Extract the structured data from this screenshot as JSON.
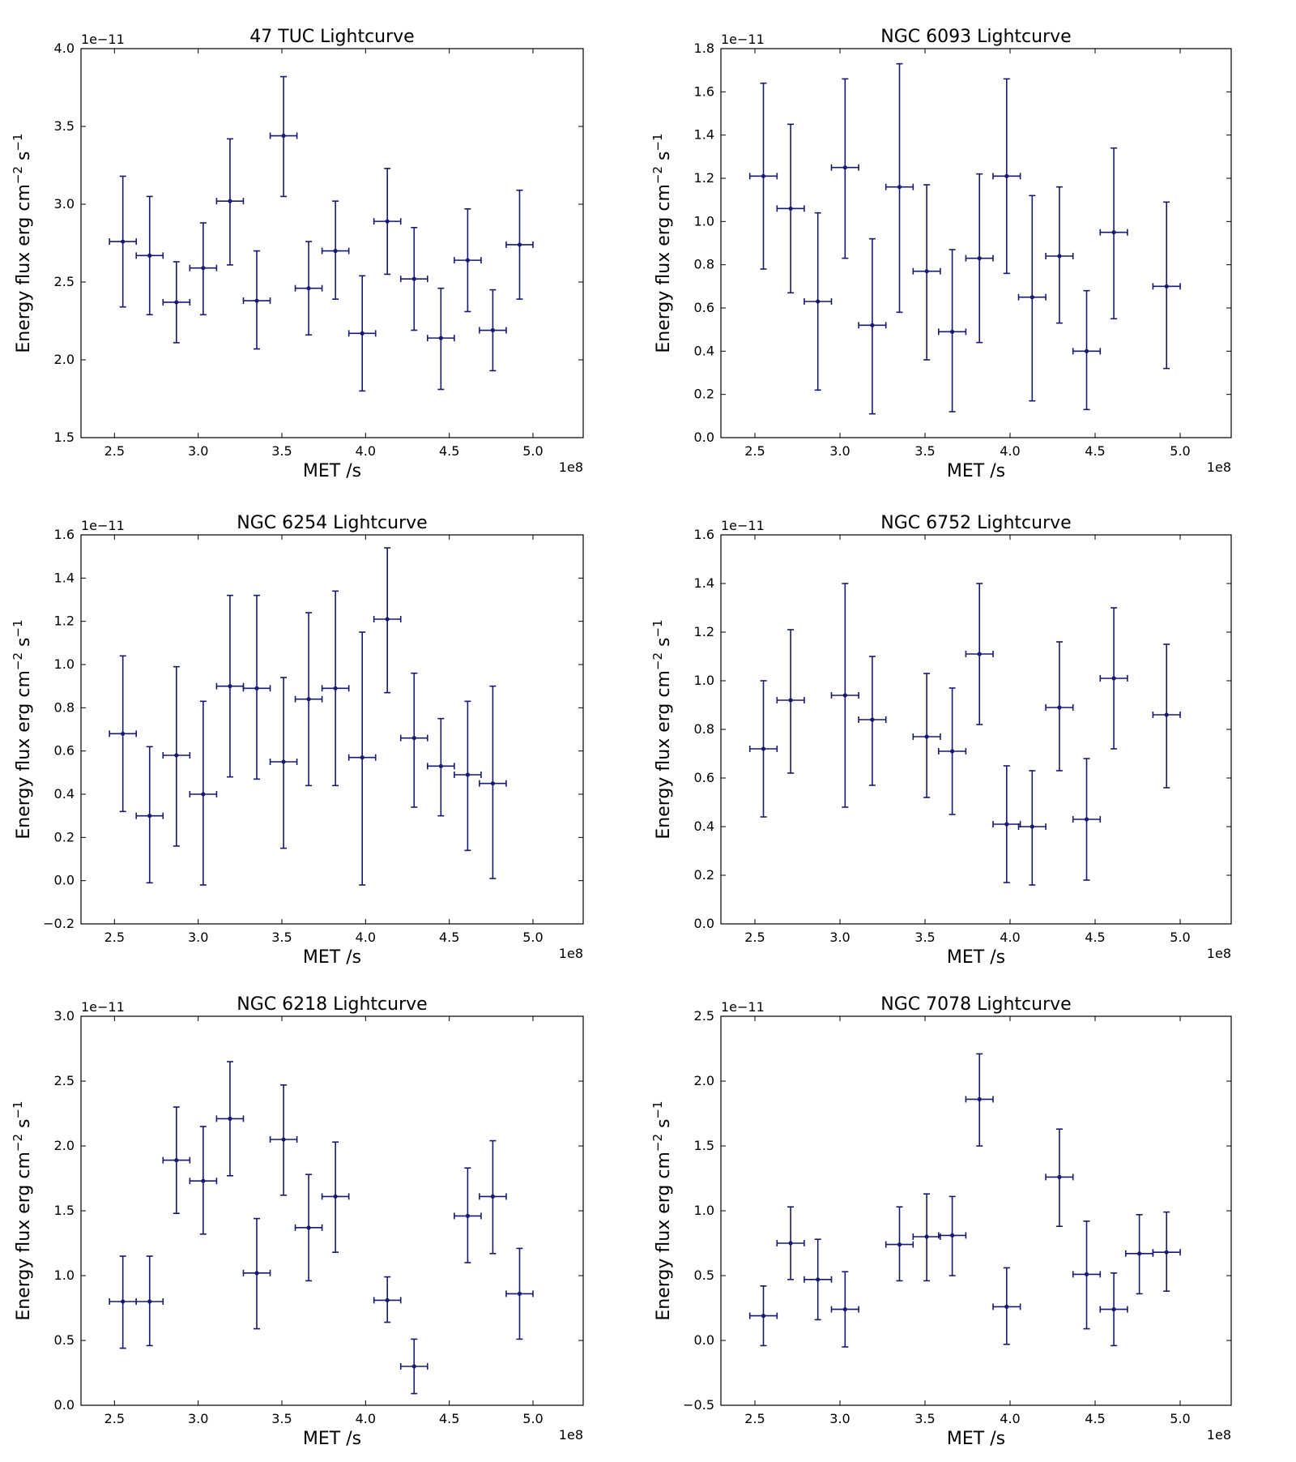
{
  "figure": {
    "xlabel": "MET /s",
    "ylabel_main": "Energy flux erg cm",
    "ylabel_sup1": "−2",
    "ylabel_mid": " s",
    "ylabel_sup2": "−1",
    "x_offset_text": "1e8",
    "y_offset_text": "1e−11"
  },
  "chart_data": [
    {
      "type": "scatter",
      "title": "47 TUC Lightcurve",
      "xlim": [
        2.3,
        5.3
      ],
      "ylim": [
        1.5,
        4.0
      ],
      "x_ticks": [
        2.5,
        3.0,
        3.5,
        4.0,
        4.5,
        5.0
      ],
      "y_ticks": [
        1.5,
        2.0,
        2.5,
        3.0,
        3.5,
        4.0
      ],
      "x_tick_labels": [
        "2.5",
        "3.0",
        "3.5",
        "4.0",
        "4.5",
        "5.0"
      ],
      "y_tick_labels": [
        "1.5",
        "2.0",
        "2.5",
        "3.0",
        "3.5",
        "4.0"
      ],
      "x_halfwidth": 0.08,
      "points": [
        {
          "x": 2.55,
          "y": 2.76,
          "lo": 2.34,
          "hi": 3.18
        },
        {
          "x": 2.71,
          "y": 2.67,
          "lo": 2.29,
          "hi": 3.05
        },
        {
          "x": 2.87,
          "y": 2.37,
          "lo": 2.11,
          "hi": 2.63
        },
        {
          "x": 3.03,
          "y": 2.59,
          "lo": 2.29,
          "hi": 2.88
        },
        {
          "x": 3.19,
          "y": 3.02,
          "lo": 2.61,
          "hi": 3.42
        },
        {
          "x": 3.35,
          "y": 2.38,
          "lo": 2.07,
          "hi": 2.7
        },
        {
          "x": 3.51,
          "y": 3.44,
          "lo": 3.05,
          "hi": 3.82
        },
        {
          "x": 3.66,
          "y": 2.46,
          "lo": 2.16,
          "hi": 2.76
        },
        {
          "x": 3.82,
          "y": 2.7,
          "lo": 2.39,
          "hi": 3.02
        },
        {
          "x": 3.98,
          "y": 2.17,
          "lo": 1.8,
          "hi": 2.54
        },
        {
          "x": 4.13,
          "y": 2.89,
          "lo": 2.55,
          "hi": 3.23
        },
        {
          "x": 4.29,
          "y": 2.52,
          "lo": 2.19,
          "hi": 2.85
        },
        {
          "x": 4.45,
          "y": 2.14,
          "lo": 1.81,
          "hi": 2.46
        },
        {
          "x": 4.61,
          "y": 2.64,
          "lo": 2.31,
          "hi": 2.97
        },
        {
          "x": 4.76,
          "y": 2.19,
          "lo": 1.93,
          "hi": 2.45
        },
        {
          "x": 4.92,
          "y": 2.74,
          "lo": 2.39,
          "hi": 3.09
        }
      ]
    },
    {
      "type": "scatter",
      "title": "NGC 6093 Lightcurve",
      "xlim": [
        2.3,
        5.3
      ],
      "ylim": [
        0.0,
        1.8
      ],
      "x_ticks": [
        2.5,
        3.0,
        3.5,
        4.0,
        4.5,
        5.0
      ],
      "y_ticks": [
        0.0,
        0.2,
        0.4,
        0.6,
        0.8,
        1.0,
        1.2,
        1.4,
        1.6,
        1.8
      ],
      "x_tick_labels": [
        "2.5",
        "3.0",
        "3.5",
        "4.0",
        "4.5",
        "5.0"
      ],
      "y_tick_labels": [
        "0.0",
        "0.2",
        "0.4",
        "0.6",
        "0.8",
        "1.0",
        "1.2",
        "1.4",
        "1.6",
        "1.8"
      ],
      "x_halfwidth": 0.08,
      "points": [
        {
          "x": 2.55,
          "y": 1.21,
          "lo": 0.78,
          "hi": 1.64
        },
        {
          "x": 2.71,
          "y": 1.06,
          "lo": 0.67,
          "hi": 1.45
        },
        {
          "x": 2.87,
          "y": 0.63,
          "lo": 0.22,
          "hi": 1.04
        },
        {
          "x": 3.03,
          "y": 1.25,
          "lo": 0.83,
          "hi": 1.66
        },
        {
          "x": 3.19,
          "y": 0.52,
          "lo": 0.11,
          "hi": 0.92
        },
        {
          "x": 3.35,
          "y": 1.16,
          "lo": 0.58,
          "hi": 1.73
        },
        {
          "x": 3.51,
          "y": 0.77,
          "lo": 0.36,
          "hi": 1.17
        },
        {
          "x": 3.66,
          "y": 0.49,
          "lo": 0.12,
          "hi": 0.87
        },
        {
          "x": 3.82,
          "y": 0.83,
          "lo": 0.44,
          "hi": 1.22
        },
        {
          "x": 3.98,
          "y": 1.21,
          "lo": 0.76,
          "hi": 1.66
        },
        {
          "x": 4.13,
          "y": 0.65,
          "lo": 0.17,
          "hi": 1.12
        },
        {
          "x": 4.29,
          "y": 0.84,
          "lo": 0.53,
          "hi": 1.16
        },
        {
          "x": 4.45,
          "y": 0.4,
          "lo": 0.13,
          "hi": 0.68
        },
        {
          "x": 4.61,
          "y": 0.95,
          "lo": 0.55,
          "hi": 1.34
        },
        {
          "x": 4.92,
          "y": 0.7,
          "lo": 0.32,
          "hi": 1.09
        }
      ]
    },
    {
      "type": "scatter",
      "title": "NGC 6254 Lightcurve",
      "xlim": [
        2.3,
        5.3
      ],
      "ylim": [
        -0.2,
        1.6
      ],
      "x_ticks": [
        2.5,
        3.0,
        3.5,
        4.0,
        4.5,
        5.0
      ],
      "y_ticks": [
        -0.2,
        0.0,
        0.2,
        0.4,
        0.6,
        0.8,
        1.0,
        1.2,
        1.4,
        1.6
      ],
      "x_tick_labels": [
        "2.5",
        "3.0",
        "3.5",
        "4.0",
        "4.5",
        "5.0"
      ],
      "y_tick_labels": [
        "−0.2",
        "0.0",
        "0.2",
        "0.4",
        "0.6",
        "0.8",
        "1.0",
        "1.2",
        "1.4",
        "1.6"
      ],
      "x_halfwidth": 0.08,
      "points": [
        {
          "x": 2.55,
          "y": 0.68,
          "lo": 0.32,
          "hi": 1.04
        },
        {
          "x": 2.71,
          "y": 0.3,
          "lo": -0.01,
          "hi": 0.62
        },
        {
          "x": 2.87,
          "y": 0.58,
          "lo": 0.16,
          "hi": 0.99
        },
        {
          "x": 3.03,
          "y": 0.4,
          "lo": -0.02,
          "hi": 0.83
        },
        {
          "x": 3.19,
          "y": 0.9,
          "lo": 0.48,
          "hi": 1.32
        },
        {
          "x": 3.35,
          "y": 0.89,
          "lo": 0.47,
          "hi": 1.32
        },
        {
          "x": 3.51,
          "y": 0.55,
          "lo": 0.15,
          "hi": 0.94
        },
        {
          "x": 3.66,
          "y": 0.84,
          "lo": 0.44,
          "hi": 1.24
        },
        {
          "x": 3.82,
          "y": 0.89,
          "lo": 0.44,
          "hi": 1.34
        },
        {
          "x": 3.98,
          "y": 0.57,
          "lo": -0.02,
          "hi": 1.15
        },
        {
          "x": 4.13,
          "y": 1.21,
          "lo": 0.87,
          "hi": 1.54
        },
        {
          "x": 4.29,
          "y": 0.66,
          "lo": 0.34,
          "hi": 0.96
        },
        {
          "x": 4.45,
          "y": 0.53,
          "lo": 0.3,
          "hi": 0.75
        },
        {
          "x": 4.61,
          "y": 0.49,
          "lo": 0.14,
          "hi": 0.83
        },
        {
          "x": 4.76,
          "y": 0.45,
          "lo": 0.01,
          "hi": 0.9
        }
      ]
    },
    {
      "type": "scatter",
      "title": "NGC 6752 Lightcurve",
      "xlim": [
        2.3,
        5.3
      ],
      "ylim": [
        0.0,
        1.6
      ],
      "x_ticks": [
        2.5,
        3.0,
        3.5,
        4.0,
        4.5,
        5.0
      ],
      "y_ticks": [
        0.0,
        0.2,
        0.4,
        0.6,
        0.8,
        1.0,
        1.2,
        1.4,
        1.6
      ],
      "x_tick_labels": [
        "2.5",
        "3.0",
        "3.5",
        "4.0",
        "4.5",
        "5.0"
      ],
      "y_tick_labels": [
        "0.0",
        "0.2",
        "0.4",
        "0.6",
        "0.8",
        "1.0",
        "1.2",
        "1.4",
        "1.6"
      ],
      "x_halfwidth": 0.08,
      "points": [
        {
          "x": 2.55,
          "y": 0.72,
          "lo": 0.44,
          "hi": 1.0
        },
        {
          "x": 2.71,
          "y": 0.92,
          "lo": 0.62,
          "hi": 1.21
        },
        {
          "x": 3.03,
          "y": 0.94,
          "lo": 0.48,
          "hi": 1.4
        },
        {
          "x": 3.19,
          "y": 0.84,
          "lo": 0.57,
          "hi": 1.1
        },
        {
          "x": 3.51,
          "y": 0.77,
          "lo": 0.52,
          "hi": 1.03
        },
        {
          "x": 3.66,
          "y": 0.71,
          "lo": 0.45,
          "hi": 0.97
        },
        {
          "x": 3.82,
          "y": 1.11,
          "lo": 0.82,
          "hi": 1.4
        },
        {
          "x": 3.98,
          "y": 0.41,
          "lo": 0.17,
          "hi": 0.65
        },
        {
          "x": 4.13,
          "y": 0.4,
          "lo": 0.16,
          "hi": 0.63
        },
        {
          "x": 4.29,
          "y": 0.89,
          "lo": 0.63,
          "hi": 1.16
        },
        {
          "x": 4.45,
          "y": 0.43,
          "lo": 0.18,
          "hi": 0.68
        },
        {
          "x": 4.61,
          "y": 1.01,
          "lo": 0.72,
          "hi": 1.3
        },
        {
          "x": 4.92,
          "y": 0.86,
          "lo": 0.56,
          "hi": 1.15
        }
      ]
    },
    {
      "type": "scatter",
      "title": "NGC 6218 Lightcurve",
      "xlim": [
        2.3,
        5.3
      ],
      "ylim": [
        0.0,
        3.0
      ],
      "x_ticks": [
        2.5,
        3.0,
        3.5,
        4.0,
        4.5,
        5.0
      ],
      "y_ticks": [
        0.0,
        0.5,
        1.0,
        1.5,
        2.0,
        2.5,
        3.0
      ],
      "x_tick_labels": [
        "2.5",
        "3.0",
        "3.5",
        "4.0",
        "4.5",
        "5.0"
      ],
      "y_tick_labels": [
        "0.0",
        "0.5",
        "1.0",
        "1.5",
        "2.0",
        "2.5",
        "3.0"
      ],
      "x_halfwidth": 0.08,
      "points": [
        {
          "x": 2.55,
          "y": 0.8,
          "lo": 0.44,
          "hi": 1.15
        },
        {
          "x": 2.71,
          "y": 0.8,
          "lo": 0.46,
          "hi": 1.15
        },
        {
          "x": 2.87,
          "y": 1.89,
          "lo": 1.48,
          "hi": 2.3
        },
        {
          "x": 3.03,
          "y": 1.73,
          "lo": 1.32,
          "hi": 2.15
        },
        {
          "x": 3.19,
          "y": 2.21,
          "lo": 1.77,
          "hi": 2.65
        },
        {
          "x": 3.35,
          "y": 1.02,
          "lo": 0.59,
          "hi": 1.44
        },
        {
          "x": 3.51,
          "y": 2.05,
          "lo": 1.62,
          "hi": 2.47
        },
        {
          "x": 3.66,
          "y": 1.37,
          "lo": 0.96,
          "hi": 1.78
        },
        {
          "x": 3.82,
          "y": 1.61,
          "lo": 1.18,
          "hi": 2.03
        },
        {
          "x": 4.13,
          "y": 0.81,
          "lo": 0.64,
          "hi": 0.99
        },
        {
          "x": 4.29,
          "y": 0.3,
          "lo": 0.09,
          "hi": 0.51
        },
        {
          "x": 4.61,
          "y": 1.46,
          "lo": 1.1,
          "hi": 1.83
        },
        {
          "x": 4.76,
          "y": 1.61,
          "lo": 1.17,
          "hi": 2.04
        },
        {
          "x": 4.92,
          "y": 0.86,
          "lo": 0.51,
          "hi": 1.21
        }
      ]
    },
    {
      "type": "scatter",
      "title": "NGC 7078 Lightcurve",
      "xlim": [
        2.3,
        5.3
      ],
      "ylim": [
        -0.5,
        2.5
      ],
      "x_ticks": [
        2.5,
        3.0,
        3.5,
        4.0,
        4.5,
        5.0
      ],
      "y_ticks": [
        -0.5,
        0.0,
        0.5,
        1.0,
        1.5,
        2.0,
        2.5
      ],
      "x_tick_labels": [
        "2.5",
        "3.0",
        "3.5",
        "4.0",
        "4.5",
        "5.0"
      ],
      "y_tick_labels": [
        "−0.5",
        "0.0",
        "0.5",
        "1.0",
        "1.5",
        "2.0",
        "2.5"
      ],
      "x_halfwidth": 0.08,
      "points": [
        {
          "x": 2.55,
          "y": 0.19,
          "lo": -0.04,
          "hi": 0.42
        },
        {
          "x": 2.71,
          "y": 0.75,
          "lo": 0.47,
          "hi": 1.03
        },
        {
          "x": 2.87,
          "y": 0.47,
          "lo": 0.16,
          "hi": 0.78
        },
        {
          "x": 3.03,
          "y": 0.24,
          "lo": -0.05,
          "hi": 0.53
        },
        {
          "x": 3.35,
          "y": 0.74,
          "lo": 0.46,
          "hi": 1.03
        },
        {
          "x": 3.51,
          "y": 0.8,
          "lo": 0.46,
          "hi": 1.13
        },
        {
          "x": 3.66,
          "y": 0.81,
          "lo": 0.5,
          "hi": 1.11
        },
        {
          "x": 3.82,
          "y": 1.86,
          "lo": 1.5,
          "hi": 2.21
        },
        {
          "x": 3.98,
          "y": 0.26,
          "lo": -0.03,
          "hi": 0.56
        },
        {
          "x": 4.29,
          "y": 1.26,
          "lo": 0.88,
          "hi": 1.63
        },
        {
          "x": 4.45,
          "y": 0.51,
          "lo": 0.09,
          "hi": 0.92
        },
        {
          "x": 4.61,
          "y": 0.24,
          "lo": -0.04,
          "hi": 0.52
        },
        {
          "x": 4.76,
          "y": 0.67,
          "lo": 0.36,
          "hi": 0.97
        },
        {
          "x": 4.92,
          "y": 0.68,
          "lo": 0.38,
          "hi": 0.99
        }
      ]
    }
  ]
}
